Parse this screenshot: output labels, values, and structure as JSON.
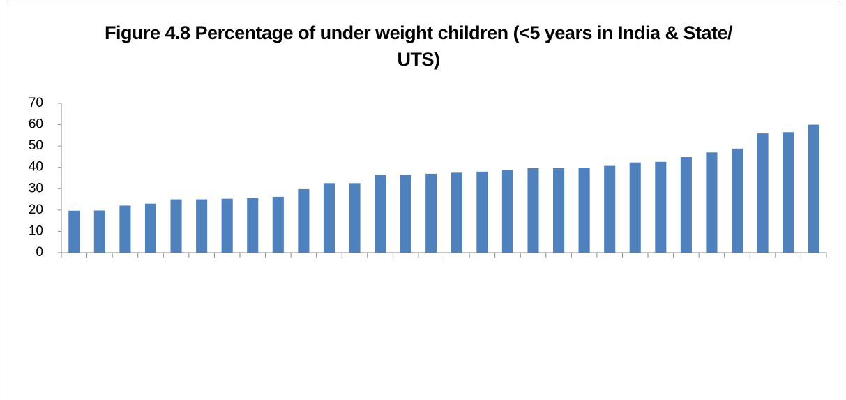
{
  "chart_data": {
    "type": "bar",
    "title": "Figure 4.8 Percentage of under weight children (<5 years in India & State/ UTS)",
    "categories": [
      null,
      null,
      null,
      null,
      null,
      null,
      null,
      null,
      null,
      null,
      null,
      null,
      null,
      null,
      null,
      null,
      null,
      null,
      null,
      null,
      null,
      null,
      null,
      null,
      null,
      null,
      null,
      null,
      null,
      null
    ],
    "values": [
      19.7,
      19.8,
      22.1,
      23.0,
      25.0,
      25.0,
      25.3,
      25.6,
      26.2,
      29.8,
      32.6,
      32.6,
      36.5,
      36.5,
      37.0,
      37.5,
      38.0,
      38.8,
      39.6,
      39.7,
      39.9,
      40.7,
      42.3,
      42.6,
      44.8,
      47.0,
      48.8,
      55.9,
      56.5,
      60.0
    ],
    "color": "#4f81bd",
    "ylim": [
      0,
      70
    ],
    "yticks": [
      0,
      10,
      20,
      30,
      40,
      50,
      60,
      70
    ],
    "grid": false
  }
}
